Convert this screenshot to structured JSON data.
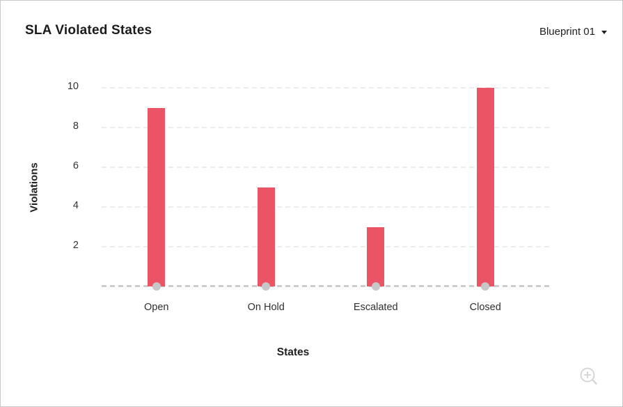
{
  "header": {
    "title": "SLA Violated States",
    "dropdown_value": "Blueprint 01"
  },
  "chart_data": {
    "type": "bar",
    "title": "SLA Violated States",
    "categories": [
      "Open",
      "On Hold",
      "Escalated",
      "Closed"
    ],
    "values": [
      9,
      5,
      3,
      10
    ],
    "xlabel": "States",
    "ylabel": "Violations",
    "ylim": [
      0,
      10
    ],
    "yticks": [
      2,
      4,
      6,
      8,
      10
    ],
    "legend": "none",
    "grid": "horizontal-dashed",
    "bar_color": "#ea5464",
    "baseline_marker_color": "#c7c7c7",
    "gridline_color": "#ededed",
    "baseline_color": "#cdcdcd"
  },
  "icons": {
    "dropdown_caret": "chevron-down",
    "zoom": "zoom-in-magnifier"
  }
}
